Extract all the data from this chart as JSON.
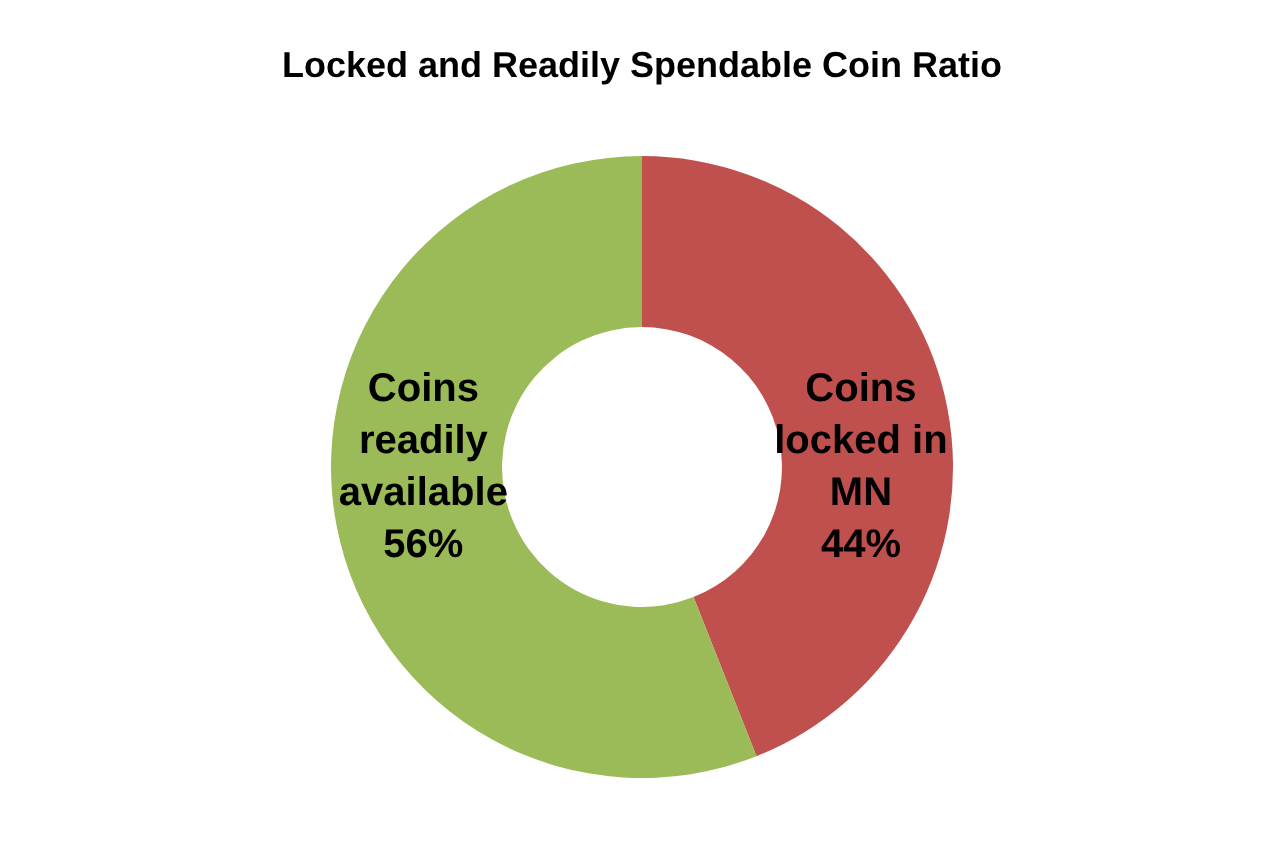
{
  "chart_data": {
    "type": "donut",
    "title": "Locked and Readily Spendable Coin Ratio",
    "categories": [
      "Coins locked in MN",
      "Coins readily available"
    ],
    "values": [
      44,
      56
    ],
    "value_labels": [
      "44%",
      "56%"
    ],
    "colors": [
      "#c0504d",
      "#9bbb59"
    ],
    "legend": false
  }
}
